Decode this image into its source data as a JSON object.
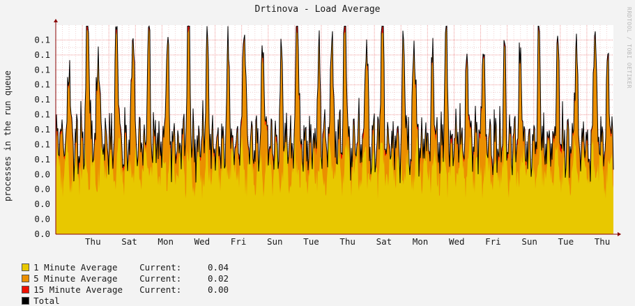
{
  "chart_data": {
    "type": "area",
    "title": "Drtinova - Load Average",
    "ylabel": "processes in the run queue",
    "xlabel": "",
    "watermark": "RRDTOOL / TOBI OETIKER",
    "y_ticks": [
      "0.0",
      "0.0",
      "0.0",
      "0.0",
      "0.0",
      "0.1",
      "0.1",
      "0.1",
      "0.1",
      "0.1",
      "0.1",
      "0.1",
      "0.1",
      "0.1"
    ],
    "ylim": [
      0,
      0.139
    ],
    "x_ticks": [
      "Thu",
      "Sat",
      "Mon",
      "Wed",
      "Fri",
      "Sun",
      "Tue",
      "Thu",
      "Sat",
      "Mon",
      "Wed",
      "Fri",
      "Sun",
      "Tue",
      "Thu"
    ],
    "grid": true,
    "colors": {
      "one_min": "#e8c800",
      "five_min": "#eb8f00",
      "fifteen_min": "#ee1000",
      "total": "#000000",
      "grid": "#ef9999",
      "axis": "#8a0000"
    },
    "series": [
      {
        "name": "1 Minute Average",
        "current_label": "Current:",
        "current": "0.04",
        "color": "#e8c800"
      },
      {
        "name": "5 Minute Average",
        "current_label": "Current:",
        "current": "0.02",
        "color": "#eb8f00"
      },
      {
        "name": "15 Minute Average",
        "current_label": "Current:",
        "current": "0.00",
        "color": "#ee1000"
      },
      {
        "name": "Total",
        "color": "#000000"
      }
    ],
    "peaks": [
      {
        "x": 0.5,
        "y": 0.088
      },
      {
        "x": 1.2,
        "y": 0.133
      },
      {
        "x": 1.6,
        "y": 0.1
      },
      {
        "x": 2.3,
        "y": 0.118
      },
      {
        "x": 2.9,
        "y": 0.11
      },
      {
        "x": 3.5,
        "y": 0.111
      },
      {
        "x": 4.2,
        "y": 0.105
      },
      {
        "x": 5.0,
        "y": 0.138
      },
      {
        "x": 5.7,
        "y": 0.103
      },
      {
        "x": 6.5,
        "y": 0.1
      },
      {
        "x": 7.1,
        "y": 0.116
      },
      {
        "x": 7.8,
        "y": 0.096
      },
      {
        "x": 8.5,
        "y": 0.093
      },
      {
        "x": 9.1,
        "y": 0.121
      },
      {
        "x": 9.9,
        "y": 0.097
      },
      {
        "x": 10.4,
        "y": 0.105
      },
      {
        "x": 10.9,
        "y": 0.128
      },
      {
        "x": 11.7,
        "y": 0.103
      },
      {
        "x": 12.3,
        "y": 0.134
      },
      {
        "x": 13.1,
        "y": 0.103
      },
      {
        "x": 13.5,
        "y": 0.104
      },
      {
        "x": 14.2,
        "y": 0.094
      },
      {
        "x": 14.7,
        "y": 0.111
      },
      {
        "x": 15.5,
        "y": 0.089
      },
      {
        "x": 16.1,
        "y": 0.103
      },
      {
        "x": 16.9,
        "y": 0.089
      },
      {
        "x": 17.5,
        "y": 0.094
      },
      {
        "x": 18.2,
        "y": 0.106
      },
      {
        "x": 18.9,
        "y": 0.103
      },
      {
        "x": 19.6,
        "y": 0.103
      },
      {
        "x": 20.3,
        "y": 0.114
      },
      {
        "x": 20.8,
        "y": 0.088
      }
    ]
  },
  "legend": [
    {
      "label": "1 Minute Average",
      "current_label": "Current:",
      "value": "0.04"
    },
    {
      "label": "5 Minute Average",
      "current_label": "Current:",
      "value": "0.02"
    },
    {
      "label": "15 Minute Average",
      "current_label": "Current:",
      "value": "0.00"
    },
    {
      "label": "Total"
    }
  ]
}
